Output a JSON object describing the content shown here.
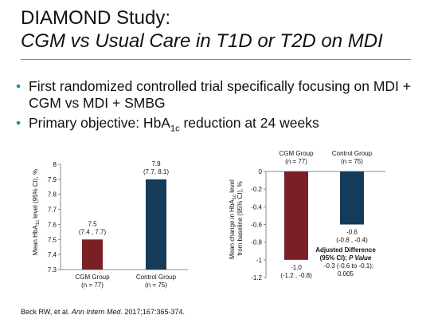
{
  "slide": {
    "title_line1": "DIAMOND Study:",
    "title_line2": "CGM vs Usual Care in T1D or T2D on MDI",
    "bullets": [
      {
        "text": "First randomized controlled trial specifically focusing on MDI + CGM vs MDI + SMBG"
      },
      {
        "pre": "Primary objective: HbA",
        "sub": "1c",
        "post": " reduction at 24 weeks"
      }
    ],
    "citation_authors": "Beck RW, et al. ",
    "citation_journal": "Ann Intern Med",
    "citation_rest": ". 2017;167:365-374."
  },
  "colors": {
    "cgm": "#7a2025",
    "control": "#143c5a",
    "rule": "#4f8fbf",
    "bullet": "#2e8fa6"
  },
  "chart_data": [
    {
      "type": "bar",
      "ylabel": "Mean HbA1c level (95% CI), %",
      "ylim": [
        7.3,
        8.0
      ],
      "yticks": [
        "7.3",
        "7.4",
        "7.5",
        "7.6",
        "7.7",
        "7.8",
        "7.9",
        "8"
      ],
      "categories": [
        {
          "line1": "CGM Group",
          "line2": "(n = 77)"
        },
        {
          "line1": "Control Group",
          "line2": "(n = 75)"
        }
      ],
      "values": [
        7.5,
        7.9
      ],
      "value_labels": [
        "7.5",
        "7.9"
      ],
      "ci_labels": [
        "(7.4 , 7.7)",
        "(7.7, 8.1)"
      ],
      "grid": false
    },
    {
      "type": "bar",
      "ylabel": "Mean change in HbA1c level from baseline (95% CI), %",
      "ylim": [
        -1.2,
        0
      ],
      "yticks": [
        "0",
        "-0.2",
        "-0.4",
        "-0.6",
        "-0.8",
        "-1",
        "-1.2"
      ],
      "categories": [
        {
          "line1": "CGM Group",
          "line2": "(n = 77)"
        },
        {
          "line1": "Control Group",
          "line2": "(n = 75)"
        }
      ],
      "values": [
        -1.0,
        -0.6
      ],
      "value_labels": [
        "-1.0",
        "-0.6"
      ],
      "ci_labels": [
        "(-1.2 , -0.8)",
        "(-0.8 , -0.4)"
      ],
      "annotation": {
        "line1": "Adjusted Difference",
        "line2_a": "(95% CI); ",
        "line2_b": "P Value",
        "line3": "-0.3 (-0.6 to -0.1);",
        "line4": "0.005"
      },
      "grid": false
    }
  ]
}
